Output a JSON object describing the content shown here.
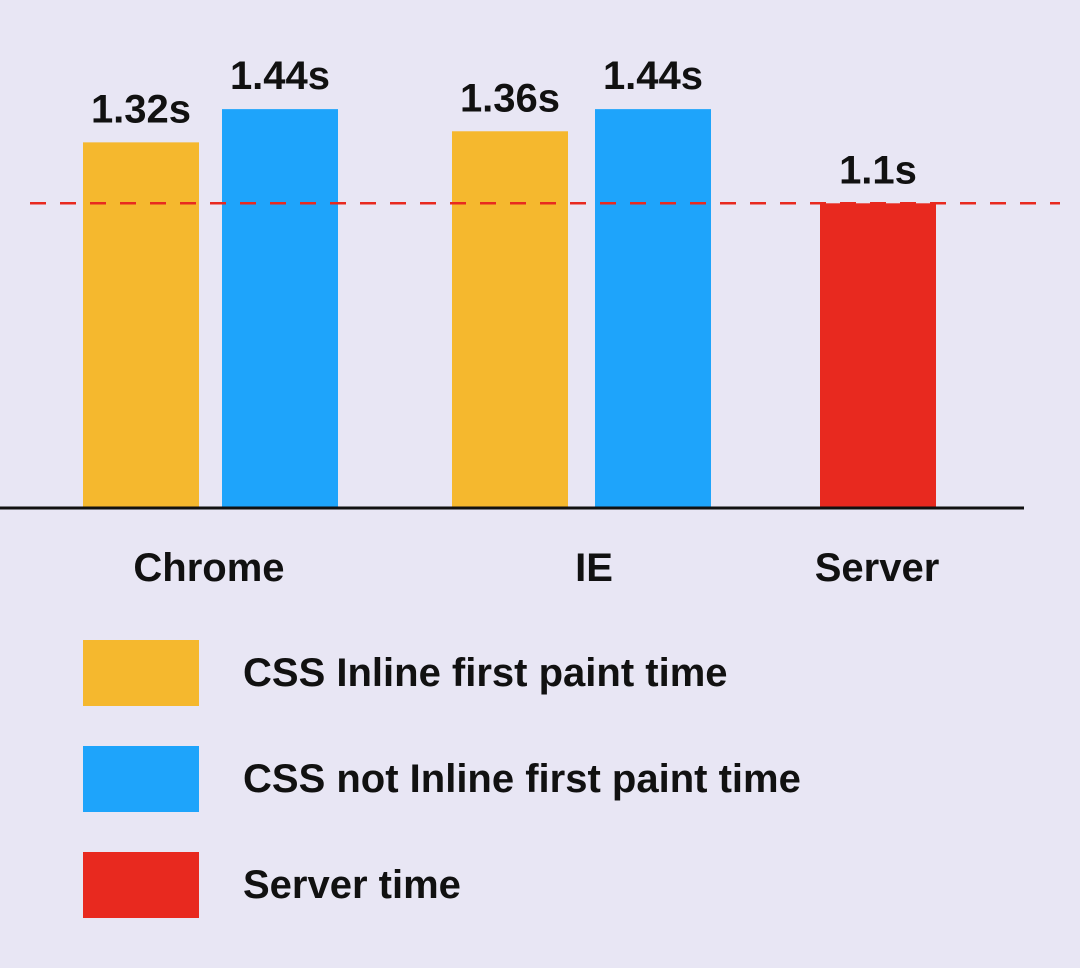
{
  "chart_data": {
    "type": "bar",
    "categories": [
      "Chrome",
      "IE",
      "Server"
    ],
    "series": [
      {
        "name": "CSS Inline first paint time",
        "color": "#f5b82e",
        "values": [
          1.32,
          1.36,
          null
        ],
        "labels": [
          "1.32s",
          "1.36s",
          ""
        ]
      },
      {
        "name": "CSS not Inline first paint time",
        "color": "#1ea4fb",
        "values": [
          1.44,
          1.44,
          null
        ],
        "labels": [
          "1.44s",
          "1.44s",
          ""
        ]
      },
      {
        "name": "Server time",
        "color": "#e8291f",
        "values": [
          null,
          null,
          1.1
        ],
        "labels": [
          "",
          "",
          "1.1s"
        ]
      }
    ],
    "reference_line": {
      "value": 1.1,
      "style": "dashed",
      "color": "#e8291f"
    },
    "title": "",
    "xlabel": "",
    "ylabel": "",
    "ylim": [
      0,
      1.83
    ],
    "grid": false,
    "legend_position": "bottom-left"
  }
}
